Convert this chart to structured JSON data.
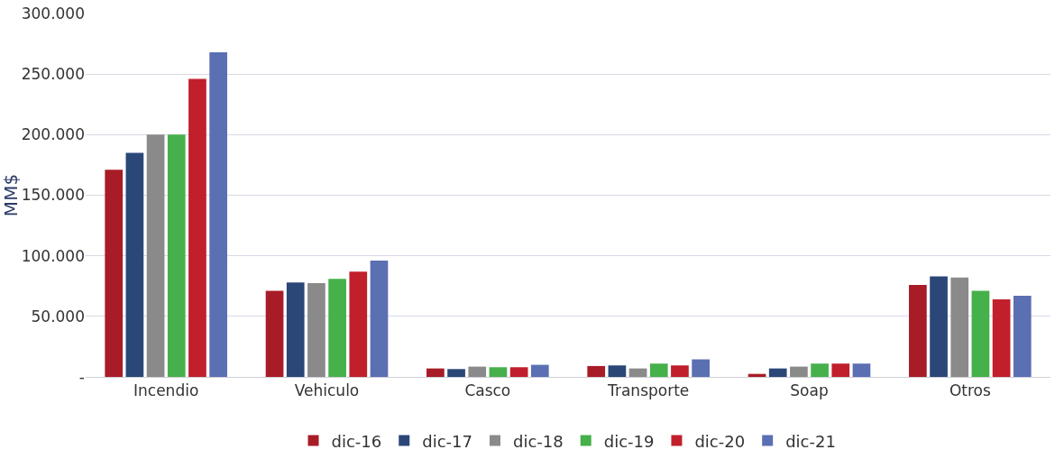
{
  "chart_data": {
    "type": "bar",
    "ylabel": "MM$",
    "categories": [
      "Incendio",
      "Vehiculo",
      "Casco",
      "Transporte",
      "Soap",
      "Otros"
    ],
    "series": [
      {
        "name": "dic-16",
        "color": "#a81c27",
        "values": [
          171000,
          71000,
          7000,
          9000,
          2500,
          76000
        ]
      },
      {
        "name": "dic-17",
        "color": "#2b4778",
        "values": [
          185000,
          78000,
          6500,
          9500,
          7000,
          83000
        ]
      },
      {
        "name": "dic-18",
        "color": "#8a8a8a",
        "values": [
          200000,
          77500,
          8500,
          7000,
          8500,
          82000
        ]
      },
      {
        "name": "dic-19",
        "color": "#46b04a",
        "values": [
          200000,
          81000,
          8000,
          11000,
          11000,
          71000
        ]
      },
      {
        "name": "dic-20",
        "color": "#c01f2b",
        "values": [
          246000,
          87000,
          8000,
          9500,
          11000,
          64000
        ]
      },
      {
        "name": "dic-21",
        "color": "#5b6fb3",
        "values": [
          268000,
          96000,
          10000,
          14500,
          11000,
          67000
        ]
      }
    ],
    "ylim": [
      0,
      300000
    ],
    "yticks": [
      {
        "value": 0,
        "label": "-"
      },
      {
        "value": 50000,
        "label": "50.000"
      },
      {
        "value": 100000,
        "label": "100.000"
      },
      {
        "value": 150000,
        "label": "150.000"
      },
      {
        "value": 200000,
        "label": "200.000"
      },
      {
        "value": 250000,
        "label": "250.000"
      },
      {
        "value": 300000,
        "label": "300.000"
      }
    ],
    "grid": "y",
    "legend": "bottom"
  }
}
